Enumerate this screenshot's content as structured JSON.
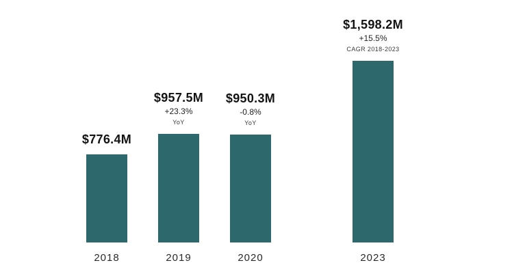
{
  "chart_data": {
    "type": "bar",
    "title": "",
    "categories": [
      "2018",
      "2019",
      "2020",
      "2023"
    ],
    "values": [
      776.4,
      957.5,
      950.3,
      1598.2
    ],
    "ylim": [
      0,
      1598.2
    ],
    "grid": false,
    "axes_visible": false,
    "bar_color": "#2d686c",
    "background_color": "#ffffff",
    "bars": [
      {
        "year": "2018",
        "value": 776.4,
        "label": "$776.4M",
        "change": "",
        "note": ""
      },
      {
        "year": "2019",
        "value": 957.5,
        "label": "$957.5M",
        "change": "+23.3%",
        "note": "YoY"
      },
      {
        "year": "2020",
        "value": 950.3,
        "label": "$950.3M",
        "change": "-0.8%",
        "note": "YoY"
      },
      {
        "year": "2023",
        "value": 1598.2,
        "label": "$1,598.2M",
        "change": "+15.5%",
        "note": "CAGR 2018-2023"
      }
    ]
  }
}
